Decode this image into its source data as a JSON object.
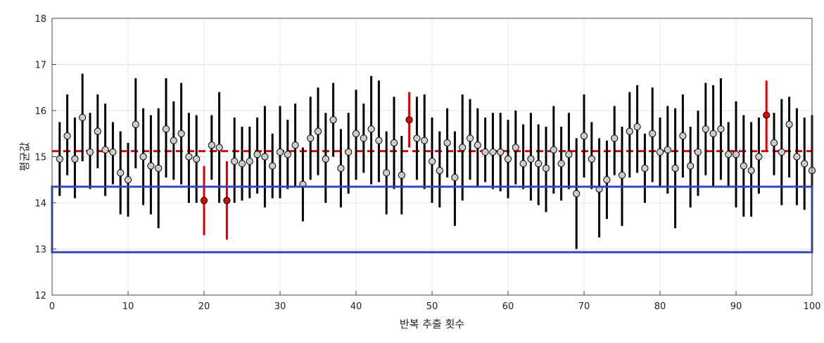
{
  "chart_data": {
    "type": "scatter",
    "xlabel": "반복 추출 횟수",
    "ylabel": "평균값",
    "xlim": [
      0,
      100
    ],
    "ylim": [
      12,
      18
    ],
    "xticks": [
      0,
      10,
      20,
      30,
      40,
      50,
      60,
      70,
      80,
      90,
      100
    ],
    "yticks": [
      12,
      13,
      14,
      15,
      16,
      17,
      18
    ],
    "grid": true,
    "population_mean": 15.12,
    "highlight_box": {
      "x": [
        0,
        100
      ],
      "y": [
        12.93,
        14.35
      ]
    },
    "colors": {
      "normal_bar": "#000000",
      "outlier_bar": "#dd0000",
      "normal_marker": "#cccccc",
      "outlier_marker": "#dd0000",
      "mean_line": "#dd0000",
      "box": "#3344bb",
      "grid": "#e3e3e3"
    },
    "outliers": [
      20,
      23,
      47,
      94
    ],
    "series": [
      {
        "x": [
          1,
          2,
          3,
          4,
          5,
          6,
          7,
          8,
          9,
          10,
          11,
          12,
          13,
          14,
          15,
          16,
          17,
          18,
          19,
          20,
          21,
          22,
          23,
          24,
          25,
          26,
          27,
          28,
          29,
          30,
          31,
          32,
          33,
          34,
          35,
          36,
          37,
          38,
          39,
          40,
          41,
          42,
          43,
          44,
          45,
          46,
          47,
          48,
          49,
          50,
          51,
          52,
          53,
          54,
          55,
          56,
          57,
          58,
          59,
          60,
          61,
          62,
          63,
          64,
          65,
          66,
          67,
          68,
          69,
          70,
          71,
          72,
          73,
          74,
          75,
          76,
          77,
          78,
          79,
          80,
          81,
          82,
          83,
          84,
          85,
          86,
          87,
          88,
          89,
          90,
          91,
          92,
          93,
          94,
          95,
          96,
          97,
          98,
          99,
          100
        ],
        "mean": [
          14.95,
          15.45,
          14.95,
          15.85,
          15.1,
          15.55,
          15.15,
          15.1,
          14.65,
          14.5,
          15.7,
          15.0,
          14.8,
          14.75,
          15.6,
          15.35,
          15.5,
          15.0,
          14.95,
          14.05,
          15.25,
          15.2,
          14.05,
          14.9,
          14.85,
          14.9,
          15.05,
          15.0,
          14.8,
          15.1,
          15.05,
          15.25,
          14.4,
          15.4,
          15.55,
          14.95,
          15.8,
          14.75,
          15.1,
          15.5,
          15.4,
          15.6,
          15.35,
          14.65,
          15.3,
          14.6,
          15.8,
          15.4,
          15.35,
          14.9,
          14.7,
          15.3,
          14.55,
          15.2,
          15.4,
          15.25,
          15.1,
          15.1,
          15.1,
          14.95,
          15.2,
          14.85,
          14.95,
          14.85,
          14.75,
          15.15,
          14.85,
          15.05,
          14.2,
          15.45,
          14.95,
          14.3,
          14.5,
          15.4,
          14.6,
          15.55,
          15.65,
          14.75,
          15.5,
          15.1,
          15.15,
          14.75,
          15.45,
          14.8,
          15.1,
          15.6,
          15.5,
          15.6,
          15.05,
          15.05,
          14.8,
          14.7,
          15.0,
          15.9,
          15.3,
          15.1,
          15.7,
          15.0,
          14.85,
          14.7
        ],
        "lower": [
          14.15,
          14.6,
          14.1,
          14.9,
          14.3,
          14.75,
          14.15,
          14.4,
          13.75,
          13.7,
          14.75,
          13.95,
          13.75,
          13.45,
          14.55,
          14.5,
          14.4,
          14.0,
          14.0,
          13.3,
          14.5,
          14.0,
          13.2,
          14.0,
          14.05,
          14.1,
          14.2,
          13.9,
          14.1,
          14.1,
          14.3,
          14.35,
          13.6,
          14.5,
          14.6,
          14.0,
          15.0,
          13.9,
          14.2,
          14.5,
          14.65,
          14.4,
          14.45,
          13.75,
          14.3,
          13.75,
          15.2,
          14.5,
          14.3,
          14.0,
          13.9,
          14.55,
          13.5,
          14.05,
          14.5,
          14.35,
          14.45,
          14.3,
          14.25,
          14.1,
          14.4,
          14.3,
          14.05,
          13.95,
          13.8,
          14.2,
          14.05,
          14.3,
          13.0,
          14.55,
          14.3,
          13.25,
          13.65,
          14.6,
          13.5,
          14.55,
          14.65,
          14.0,
          14.45,
          14.35,
          14.2,
          13.45,
          14.55,
          13.9,
          14.15,
          14.6,
          14.35,
          14.5,
          14.35,
          13.9,
          13.7,
          13.7,
          14.2,
          15.1,
          14.6,
          13.95,
          14.55,
          13.95,
          13.85,
          13.5
        ],
        "upper": [
          15.75,
          16.35,
          15.85,
          16.8,
          15.95,
          16.35,
          16.15,
          15.75,
          15.55,
          15.3,
          16.7,
          16.05,
          15.9,
          16.05,
          16.7,
          16.2,
          16.6,
          15.95,
          15.9,
          14.8,
          15.9,
          16.4,
          14.9,
          15.85,
          15.65,
          15.65,
          15.85,
          16.1,
          15.5,
          16.1,
          15.8,
          16.15,
          15.2,
          16.3,
          16.5,
          15.95,
          16.6,
          15.6,
          15.95,
          16.45,
          16.15,
          16.75,
          16.65,
          15.55,
          16.3,
          15.45,
          16.4,
          16.3,
          16.35,
          15.85,
          15.55,
          16.05,
          15.55,
          16.35,
          16.25,
          16.05,
          15.85,
          15.95,
          15.95,
          15.8,
          16.0,
          15.7,
          15.95,
          15.7,
          15.65,
          16.1,
          15.65,
          15.95,
          15.4,
          16.35,
          15.75,
          15.4,
          15.35,
          16.1,
          15.65,
          16.4,
          16.55,
          15.5,
          16.5,
          15.85,
          16.1,
          16.05,
          16.35,
          15.65,
          16.0,
          16.6,
          16.55,
          16.7,
          15.75,
          16.2,
          15.9,
          15.75,
          15.85,
          16.65,
          15.95,
          16.25,
          16.3,
          16.05,
          15.85,
          15.9
        ]
      }
    ]
  }
}
